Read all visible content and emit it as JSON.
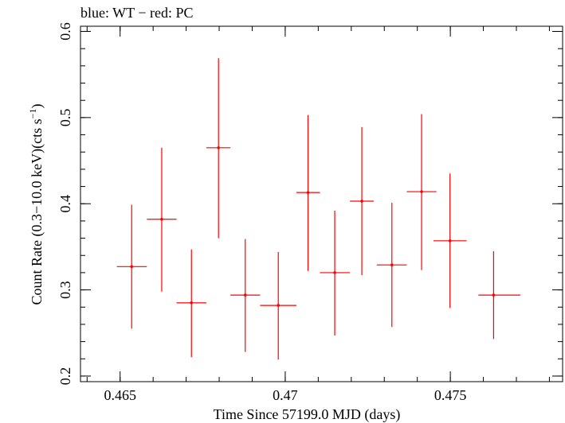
{
  "chart_data": {
    "type": "scatter",
    "title": "blue: WT − red: PC",
    "xlabel": "Time Since 57199.0 MJD (days)",
    "ylabel_main": "Count Rate (0.3−10.0 keV)(cts s",
    "ylabel_sup": "−1",
    "ylabel_end": ")",
    "xlim": [
      0.4638,
      0.4784
    ],
    "ylim": [
      0.1935,
      0.606
    ],
    "xticks": [
      {
        "value": 0.465,
        "label": "0.465"
      },
      {
        "value": 0.47,
        "label": "0.47"
      },
      {
        "value": 0.475,
        "label": "0.475"
      }
    ],
    "yticks": [
      {
        "value": 0.2,
        "label": "0.2"
      },
      {
        "value": 0.3,
        "label": "0.3"
      },
      {
        "value": 0.4,
        "label": "0.4"
      },
      {
        "value": 0.5,
        "label": "0.5"
      },
      {
        "value": 0.6,
        "label": "0.6"
      }
    ],
    "x_minor_step": 0.001,
    "y_minor_step": 0.02,
    "series": [
      {
        "color": "#ff0000",
        "points": [
          {
            "x": 0.46535,
            "xlo": 0.4649,
            "xhi": 0.46581,
            "y": 0.327,
            "ylo": 0.255,
            "yhi": 0.399
          },
          {
            "x": 0.46626,
            "xlo": 0.46581,
            "xhi": 0.46671,
            "y": 0.382,
            "ylo": 0.298,
            "yhi": 0.465
          },
          {
            "x": 0.46716,
            "xlo": 0.46671,
            "xhi": 0.46761,
            "y": 0.285,
            "ylo": 0.222,
            "yhi": 0.347
          },
          {
            "x": 0.46798,
            "xlo": 0.46761,
            "xhi": 0.46834,
            "y": 0.465,
            "ylo": 0.36,
            "yhi": 0.569
          },
          {
            "x": 0.46879,
            "xlo": 0.46834,
            "xhi": 0.46924,
            "y": 0.294,
            "ylo": 0.228,
            "yhi": 0.359
          },
          {
            "x": 0.46979,
            "xlo": 0.46924,
            "xhi": 0.47034,
            "y": 0.282,
            "ylo": 0.219,
            "yhi": 0.344
          },
          {
            "x": 0.47069,
            "xlo": 0.47034,
            "xhi": 0.47105,
            "y": 0.413,
            "ylo": 0.322,
            "yhi": 0.503
          },
          {
            "x": 0.4715,
            "xlo": 0.47105,
            "xhi": 0.47196,
            "y": 0.32,
            "ylo": 0.247,
            "yhi": 0.392
          },
          {
            "x": 0.47232,
            "xlo": 0.47196,
            "xhi": 0.47268,
            "y": 0.403,
            "ylo": 0.317,
            "yhi": 0.489
          },
          {
            "x": 0.47323,
            "xlo": 0.47277,
            "xhi": 0.47368,
            "y": 0.329,
            "ylo": 0.257,
            "yhi": 0.401
          },
          {
            "x": 0.47413,
            "xlo": 0.47368,
            "xhi": 0.47458,
            "y": 0.414,
            "ylo": 0.323,
            "yhi": 0.504
          },
          {
            "x": 0.47499,
            "xlo": 0.47449,
            "xhi": 0.47549,
            "y": 0.357,
            "ylo": 0.279,
            "yhi": 0.435
          },
          {
            "x": 0.47631,
            "xlo": 0.47585,
            "xhi": 0.47712,
            "y": 0.294,
            "ylo": 0.243,
            "yhi": 0.345
          }
        ]
      }
    ]
  }
}
